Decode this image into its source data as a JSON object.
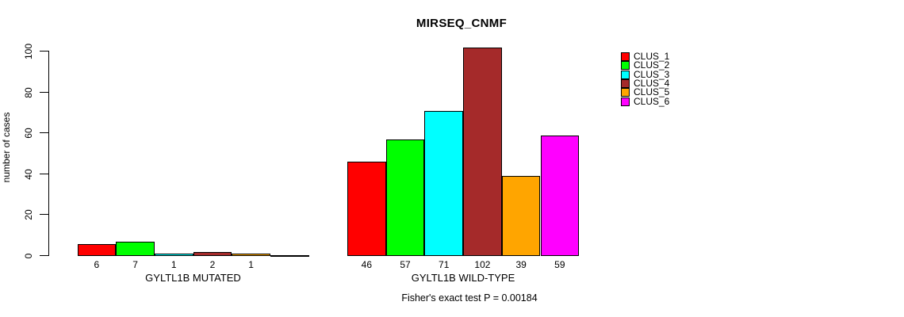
{
  "chart_data": {
    "type": "bar",
    "title": "MIRSEQ_CNMF",
    "ylabel": "number of cases",
    "xlabel": "",
    "ylim": [
      0,
      110
    ],
    "yticks": [
      0,
      20,
      40,
      60,
      80,
      100
    ],
    "ytick_labels": [
      "0",
      "20",
      "40",
      "60",
      "80",
      "100"
    ],
    "grid": false,
    "legend_position": "right-outside",
    "series": [
      {
        "name": "CLUS_1",
        "color": "#FF0000"
      },
      {
        "name": "CLUS_2",
        "color": "#00FF00"
      },
      {
        "name": "CLUS_3",
        "color": "#00FFFF"
      },
      {
        "name": "CLUS_4",
        "color": "#A52A2A"
      },
      {
        "name": "CLUS_5",
        "color": "#FFA500"
      },
      {
        "name": "CLUS_6",
        "color": "#FF00FF"
      }
    ],
    "groups": [
      {
        "label": "GYLTL1B MUTATED",
        "values": [
          6,
          7,
          1,
          2,
          1,
          0
        ],
        "value_labels": [
          "6",
          "7",
          "1",
          "2",
          "1",
          ""
        ]
      },
      {
        "label": "GYLTL1B WILD-TYPE",
        "values": [
          46,
          57,
          71,
          102,
          39,
          59
        ],
        "value_labels": [
          "46",
          "57",
          "71",
          "102",
          "39",
          "59"
        ]
      }
    ],
    "annotation": "Fisher's exact test P = 0.00184"
  }
}
